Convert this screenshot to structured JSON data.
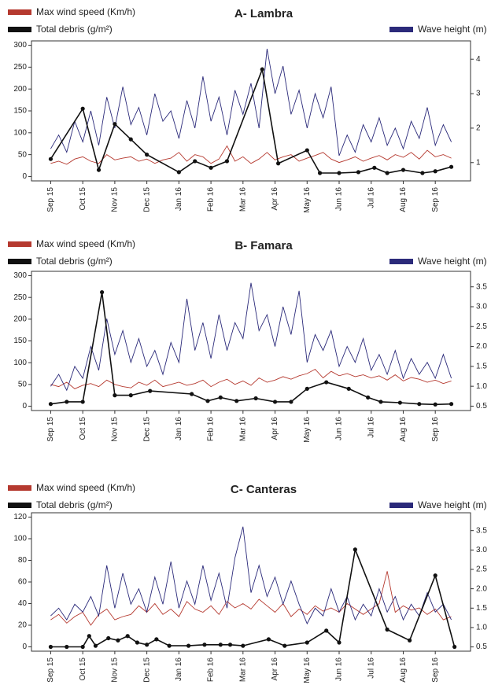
{
  "chart_data": [
    {
      "type": "line",
      "title": "A- Lambra",
      "x": [
        0,
        0.25,
        0.5,
        0.75,
        1,
        1.25,
        1.5,
        1.75,
        2,
        2.25,
        2.5,
        2.75,
        3,
        3.25,
        3.5,
        3.75,
        4,
        4.25,
        4.5,
        4.75,
        5,
        5.25,
        5.5,
        5.75,
        6,
        6.25,
        6.5,
        6.75,
        7,
        7.25,
        7.5,
        7.75,
        8,
        8.25,
        8.5,
        8.75,
        9,
        9.25,
        9.5,
        9.75,
        10,
        10.25,
        10.5,
        10.75,
        11,
        11.25,
        11.5,
        11.75,
        12,
        12.25,
        12.5
      ],
      "series": [
        {
          "name": "Max wind speed (Km/h)",
          "color": "#b5392f",
          "axis": "y",
          "values": [
            30,
            35,
            28,
            40,
            45,
            35,
            30,
            50,
            38,
            42,
            45,
            35,
            40,
            30,
            38,
            42,
            55,
            35,
            50,
            45,
            30,
            40,
            70,
            35,
            45,
            30,
            40,
            55,
            38,
            45,
            50,
            35,
            42,
            48,
            55,
            40,
            32,
            38,
            45,
            35,
            42,
            48,
            38,
            50,
            44,
            55,
            40,
            60,
            45,
            50,
            42
          ]
        },
        {
          "name": "Total debris (g/m²)",
          "color": "#111111",
          "axis": "y",
          "markers": true,
          "x": [
            0,
            1,
            1.5,
            2,
            2.5,
            3,
            4,
            4.5,
            5,
            5.5,
            6.6,
            7.1,
            8,
            8.4,
            9,
            9.6,
            10.1,
            10.5,
            11,
            11.6,
            12,
            12.5
          ],
          "values": [
            40,
            155,
            15,
            120,
            85,
            50,
            10,
            35,
            20,
            35,
            245,
            30,
            60,
            8,
            8,
            10,
            20,
            8,
            15,
            8,
            12,
            22
          ]
        },
        {
          "name": "Wave height (m)",
          "color": "#2b2a7a",
          "axis": "y2",
          "values": [
            1.4,
            1.8,
            1.3,
            2.2,
            1.6,
            2.5,
            1.5,
            2.9,
            2.0,
            3.2,
            2.1,
            2.6,
            1.8,
            3.0,
            2.2,
            2.5,
            1.7,
            2.8,
            2.0,
            3.5,
            2.2,
            2.9,
            1.8,
            3.1,
            2.4,
            3.3,
            2.0,
            4.3,
            3.0,
            3.8,
            2.4,
            3.1,
            2.0,
            3.0,
            2.3,
            3.2,
            1.2,
            1.8,
            1.3,
            2.1,
            1.6,
            2.3,
            1.5,
            2.0,
            1.4,
            2.2,
            1.7,
            2.6,
            1.5,
            2.1,
            1.6
          ]
        }
      ],
      "xlim": [
        -0.6,
        13.1
      ],
      "xticks": [
        {
          "value": 0,
          "label": "Sep 15"
        },
        {
          "value": 1,
          "label": "Oct 15"
        },
        {
          "value": 2,
          "label": "Nov 15"
        },
        {
          "value": 3,
          "label": "Dec 15"
        },
        {
          "value": 4,
          "label": "Jan 16"
        },
        {
          "value": 5,
          "label": "Feb 16"
        },
        {
          "value": 6,
          "label": "Mar 16"
        },
        {
          "value": 7,
          "label": "Apr 16"
        },
        {
          "value": 8,
          "label": "May 16"
        },
        {
          "value": 9,
          "label": "Jun 16"
        },
        {
          "value": 10,
          "label": "Jul 16"
        },
        {
          "value": 11,
          "label": "Aug 16"
        },
        {
          "value": 12,
          "label": "Sep 16"
        }
      ],
      "ylim": [
        -10,
        310
      ],
      "yticks": [
        0,
        50,
        100,
        150,
        200,
        250,
        300
      ],
      "y2lim": [
        0.47,
        4.53
      ],
      "y2ticks": [
        1,
        2,
        3,
        4
      ]
    },
    {
      "type": "line",
      "title": "B- Famara",
      "x": [
        0,
        0.25,
        0.5,
        0.75,
        1,
        1.25,
        1.5,
        1.75,
        2,
        2.25,
        2.5,
        2.75,
        3,
        3.25,
        3.5,
        3.75,
        4,
        4.25,
        4.5,
        4.75,
        5,
        5.25,
        5.5,
        5.75,
        6,
        6.25,
        6.5,
        6.75,
        7,
        7.25,
        7.5,
        7.75,
        8,
        8.25,
        8.5,
        8.75,
        9,
        9.25,
        9.5,
        9.75,
        10,
        10.25,
        10.5,
        10.75,
        11,
        11.25,
        11.5,
        11.75,
        12,
        12.25,
        12.5
      ],
      "series": [
        {
          "name": "Max wind speed (Km/h)",
          "color": "#b5392f",
          "axis": "y",
          "values": [
            50,
            45,
            55,
            40,
            48,
            52,
            45,
            60,
            50,
            45,
            42,
            55,
            48,
            60,
            45,
            50,
            55,
            48,
            52,
            60,
            45,
            55,
            62,
            50,
            58,
            48,
            65,
            55,
            60,
            68,
            62,
            70,
            75,
            85,
            65,
            80,
            70,
            75,
            68,
            72,
            65,
            70,
            60,
            72,
            58,
            66,
            62,
            55,
            60,
            52,
            58
          ]
        },
        {
          "name": "Total debris (g/m²)",
          "color": "#111111",
          "axis": "y",
          "markers": true,
          "x": [
            0,
            0.5,
            1.0,
            1.6,
            2.0,
            2.5,
            3.1,
            4.4,
            4.9,
            5.3,
            5.8,
            6.4,
            7,
            7.5,
            8,
            8.6,
            9.3,
            9.9,
            10.3,
            10.9,
            11.5,
            12,
            12.5
          ],
          "values": [
            5,
            10,
            10,
            262,
            25,
            25,
            35,
            28,
            12,
            20,
            12,
            18,
            10,
            10,
            40,
            55,
            40,
            20,
            10,
            8,
            5,
            4,
            5
          ]
        },
        {
          "name": "Wave height (m)",
          "color": "#2b2a7a",
          "axis": "y2",
          "values": [
            1.0,
            1.3,
            0.9,
            1.5,
            1.2,
            2.0,
            1.4,
            2.7,
            1.8,
            2.4,
            1.6,
            2.2,
            1.5,
            1.9,
            1.3,
            2.1,
            1.6,
            3.2,
            1.9,
            2.6,
            1.7,
            2.8,
            1.9,
            2.6,
            2.2,
            3.6,
            2.4,
            2.8,
            2.0,
            3.0,
            2.3,
            3.4,
            1.6,
            2.3,
            1.9,
            2.4,
            1.5,
            2.0,
            1.6,
            2.2,
            1.4,
            1.8,
            1.3,
            1.9,
            1.2,
            1.7,
            1.3,
            1.6,
            1.2,
            1.8,
            1.2
          ]
        }
      ],
      "xlim": [
        -0.6,
        13.1
      ],
      "xticks": [
        {
          "value": 0,
          "label": "Sep 15"
        },
        {
          "value": 1,
          "label": "Oct 15"
        },
        {
          "value": 2,
          "label": "Nov 15"
        },
        {
          "value": 3,
          "label": "Dec 15"
        },
        {
          "value": 4,
          "label": "Jan 16"
        },
        {
          "value": 5,
          "label": "Feb 16"
        },
        {
          "value": 6,
          "label": "Mar 16"
        },
        {
          "value": 7,
          "label": "Apr 16"
        },
        {
          "value": 8,
          "label": "May 16"
        },
        {
          "value": 9,
          "label": "Jun 16"
        },
        {
          "value": 10,
          "label": "Jul 16"
        },
        {
          "value": 11,
          "label": "Aug 16"
        },
        {
          "value": 12,
          "label": "Sep 16"
        }
      ],
      "ylim": [
        -10,
        310
      ],
      "yticks": [
        0,
        50,
        100,
        150,
        200,
        250,
        300
      ],
      "y2lim": [
        0.39,
        3.89
      ],
      "y2ticks": [
        0.5,
        {
          "value": 1,
          "label": "1.0"
        },
        1.5,
        {
          "value": 2,
          "label": "2.0"
        },
        2.5,
        {
          "value": 3,
          "label": "3.0"
        },
        3.5
      ]
    },
    {
      "type": "line",
      "title": "C- Canteras",
      "x": [
        0,
        0.25,
        0.5,
        0.75,
        1,
        1.25,
        1.5,
        1.75,
        2,
        2.25,
        2.5,
        2.75,
        3,
        3.25,
        3.5,
        3.75,
        4,
        4.25,
        4.5,
        4.75,
        5,
        5.25,
        5.5,
        5.75,
        6,
        6.25,
        6.5,
        6.75,
        7,
        7.25,
        7.5,
        7.75,
        8,
        8.25,
        8.5,
        8.75,
        9,
        9.25,
        9.5,
        9.75,
        10,
        10.25,
        10.5,
        10.75,
        11,
        11.25,
        11.5,
        11.75,
        12,
        12.25,
        12.5
      ],
      "series": [
        {
          "name": "Max wind speed (Km/h)",
          "color": "#b5392f",
          "axis": "y",
          "values": [
            25,
            30,
            22,
            28,
            32,
            20,
            30,
            35,
            25,
            28,
            30,
            38,
            32,
            40,
            30,
            35,
            28,
            42,
            35,
            32,
            38,
            30,
            42,
            36,
            40,
            35,
            44,
            38,
            32,
            40,
            28,
            35,
            30,
            38,
            33,
            36,
            32,
            40,
            35,
            30,
            35,
            40,
            70,
            32,
            38,
            34,
            36,
            30,
            35,
            25,
            28
          ]
        },
        {
          "name": "Total debris (g/m²)",
          "color": "#111111",
          "axis": "y",
          "markers": true,
          "x": [
            0,
            0.5,
            1,
            1.2,
            1.4,
            1.8,
            2.1,
            2.4,
            2.7,
            3.0,
            3.3,
            3.7,
            4.3,
            4.8,
            5.3,
            5.6,
            6.0,
            6.8,
            7.3,
            8.0,
            8.6,
            9.0,
            9.5,
            10.5,
            11.2,
            12.0,
            12.6
          ],
          "values": [
            0,
            0,
            0,
            10,
            1,
            8,
            6,
            10,
            4,
            2,
            7,
            1,
            1,
            2,
            2,
            2,
            1,
            7,
            1,
            4,
            15,
            4,
            90,
            16,
            6,
            66,
            0
          ]
        },
        {
          "name": "Wave height (m)",
          "color": "#2b2a7a",
          "axis": "y2",
          "values": [
            1.3,
            1.5,
            1.2,
            1.6,
            1.4,
            1.8,
            1.3,
            2.6,
            1.5,
            2.4,
            1.6,
            2.0,
            1.4,
            2.3,
            1.6,
            2.7,
            1.5,
            2.2,
            1.6,
            2.6,
            1.7,
            2.4,
            1.5,
            2.8,
            3.6,
            1.9,
            2.6,
            1.8,
            2.3,
            1.6,
            2.2,
            1.6,
            1.1,
            1.5,
            1.3,
            2.0,
            1.4,
            1.8,
            1.2,
            1.6,
            1.3,
            2.0,
            1.4,
            1.8,
            1.2,
            1.6,
            1.3,
            1.9,
            1.4,
            1.6,
            1.2
          ]
        }
      ],
      "xlim": [
        -0.6,
        13.1
      ],
      "xticks": [
        {
          "value": 0,
          "label": "Sep 15"
        },
        {
          "value": 1,
          "label": "Oct 15"
        },
        {
          "value": 2,
          "label": "Nov 15"
        },
        {
          "value": 3,
          "label": "Dec 15"
        },
        {
          "value": 4,
          "label": "Jan 16"
        },
        {
          "value": 5,
          "label": "Feb 16"
        },
        {
          "value": 6,
          "label": "Mar 16"
        },
        {
          "value": 7,
          "label": "Apr 16"
        },
        {
          "value": 8,
          "label": "May 16"
        },
        {
          "value": 9,
          "label": "Jun 16"
        },
        {
          "value": 10,
          "label": "Jul 16"
        },
        {
          "value": 11,
          "label": "Aug 16"
        },
        {
          "value": 12,
          "label": "Sep 16"
        }
      ],
      "ylim": [
        -4,
        124
      ],
      "yticks": [
        0,
        20,
        40,
        60,
        80,
        100,
        120
      ],
      "y2lim": [
        0.39,
        3.96
      ],
      "y2ticks": [
        0.5,
        {
          "value": 1,
          "label": "1.0"
        },
        1.5,
        {
          "value": 2,
          "label": "2.0"
        },
        2.5,
        {
          "value": 3,
          "label": "3.0"
        },
        3.5
      ]
    }
  ]
}
